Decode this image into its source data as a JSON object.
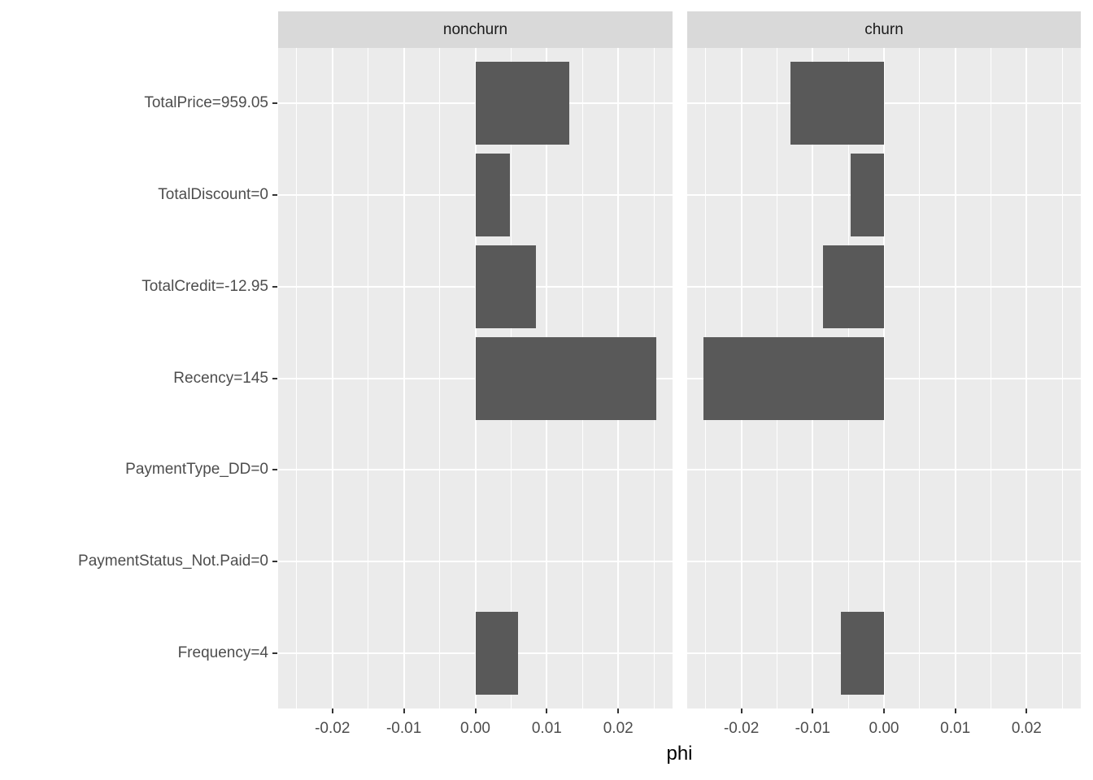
{
  "chart_data": {
    "type": "bar",
    "orientation": "horizontal",
    "title": "",
    "xlabel": "phi",
    "ylabel": "",
    "categories": [
      "TotalPrice=959.05",
      "TotalDiscount=0",
      "TotalCredit=-12.95",
      "Recency=145",
      "PaymentType_DD=0",
      "PaymentStatus_Not.Paid=0",
      "Frequency=4"
    ],
    "facets": [
      {
        "label": "nonchurn",
        "values": [
          0.0131,
          0.0048,
          0.0085,
          0.0253,
          0,
          0,
          0.006
        ]
      },
      {
        "label": "churn",
        "values": [
          -0.0131,
          -0.0047,
          -0.0085,
          -0.0253,
          0,
          0,
          -0.006
        ]
      }
    ],
    "x_ticks": [
      {
        "value": -0.02,
        "label": "-0.02"
      },
      {
        "value": -0.01,
        "label": "-0.01"
      },
      {
        "value": 0,
        "label": "0.00"
      },
      {
        "value": 0.01,
        "label": "0.01"
      },
      {
        "value": 0.02,
        "label": "0.02"
      }
    ],
    "x_minor_ticks": [
      -0.025,
      -0.015,
      -0.005,
      0.005,
      0.015,
      0.025
    ],
    "xlim": [
      -0.0276,
      0.0276
    ],
    "grid": true,
    "legend": "none",
    "colors": {
      "bar": "#595959",
      "panel_bg": "#EBEBEB",
      "strip_bg": "#D9D9D9",
      "grid": "#FFFFFF",
      "axis_text": "#4D4D4D",
      "strip_text": "#1A1A1A",
      "axis_title": "#000000",
      "tick_mark": "#333333",
      "background": "#FFFFFF"
    }
  }
}
